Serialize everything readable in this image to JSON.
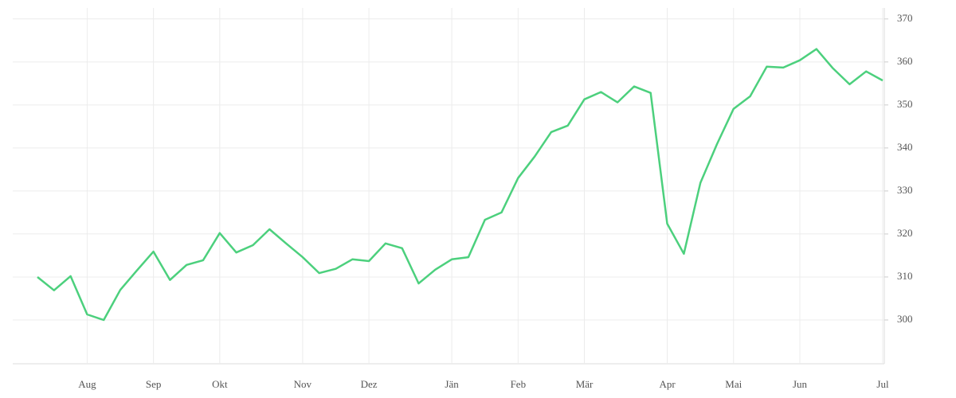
{
  "chart_data": {
    "type": "line",
    "categories": [
      null,
      null,
      null,
      "Aug",
      null,
      null,
      null,
      "Sep",
      null,
      null,
      null,
      "Okt",
      null,
      null,
      null,
      null,
      "Nov",
      null,
      null,
      null,
      "Dez",
      null,
      null,
      null,
      null,
      "Jän",
      null,
      null,
      null,
      "Feb",
      null,
      null,
      null,
      "Mär",
      null,
      null,
      null,
      null,
      "Apr",
      null,
      null,
      null,
      "Mai",
      null,
      null,
      null,
      "Jun",
      null,
      null,
      null,
      null,
      "Jul"
    ],
    "values": [
      310.0,
      306.9,
      310.2,
      301.3,
      300.0,
      307.0,
      311.5,
      315.9,
      309.3,
      312.8,
      313.9,
      320.2,
      315.7,
      317.4,
      321.1,
      317.8,
      314.6,
      310.9,
      311.9,
      314.1,
      313.7,
      317.8,
      316.7,
      308.5,
      311.7,
      314.1,
      314.6,
      323.3,
      325.0,
      333.0,
      338.0,
      343.7,
      345.2,
      351.3,
      353.0,
      350.6,
      354.3,
      352.8,
      322.4,
      315.4,
      331.9,
      340.9,
      349.1,
      352.0,
      358.9,
      358.7,
      360.4,
      363.0,
      358.5,
      354.8,
      357.8,
      355.7
    ],
    "color": "#4cd07d",
    "ylim": [
      290,
      372
    ],
    "yticks": [
      300,
      310,
      320,
      330,
      340,
      350,
      360,
      370
    ],
    "grid": true
  }
}
